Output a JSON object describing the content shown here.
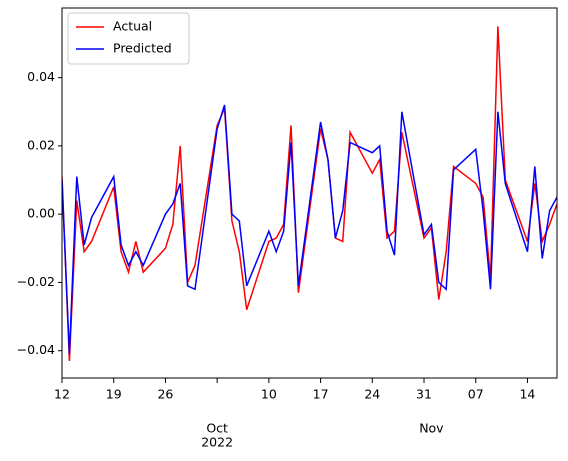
{
  "chart_data": {
    "type": "line",
    "x": [
      "2022-09-12",
      "2022-09-13",
      "2022-09-14",
      "2022-09-15",
      "2022-09-16",
      "2022-09-19",
      "2022-09-20",
      "2022-09-21",
      "2022-09-22",
      "2022-09-23",
      "2022-09-26",
      "2022-09-27",
      "2022-09-28",
      "2022-09-29",
      "2022-09-30",
      "2022-10-03",
      "2022-10-04",
      "2022-10-05",
      "2022-10-06",
      "2022-10-07",
      "2022-10-10",
      "2022-10-11",
      "2022-10-12",
      "2022-10-13",
      "2022-10-14",
      "2022-10-17",
      "2022-10-18",
      "2022-10-19",
      "2022-10-20",
      "2022-10-21",
      "2022-10-24",
      "2022-10-25",
      "2022-10-26",
      "2022-10-27",
      "2022-10-28",
      "2022-10-31",
      "2022-11-01",
      "2022-11-02",
      "2022-11-03",
      "2022-11-04",
      "2022-11-07",
      "2022-11-08",
      "2022-11-09",
      "2022-11-10",
      "2022-11-11",
      "2022-11-14",
      "2022-11-15",
      "2022-11-16",
      "2022-11-17",
      "2022-11-18"
    ],
    "series": [
      {
        "name": "Actual",
        "color": "#ff0000",
        "values": [
          0.011,
          -0.043,
          0.004,
          -0.011,
          -0.008,
          0.008,
          -0.011,
          -0.017,
          -0.008,
          -0.017,
          -0.01,
          -0.003,
          0.02,
          -0.02,
          -0.015,
          0.026,
          0.031,
          -0.002,
          -0.011,
          -0.028,
          -0.008,
          -0.007,
          -0.003,
          0.026,
          -0.023,
          0.025,
          0.016,
          -0.007,
          -0.008,
          0.024,
          0.012,
          0.016,
          -0.007,
          -0.005,
          0.024,
          -0.007,
          -0.004,
          -0.025,
          -0.011,
          0.014,
          0.009,
          0.005,
          -0.019,
          0.055,
          0.01,
          -0.008,
          0.009,
          -0.008,
          -0.003,
          0.003
        ]
      },
      {
        "name": "Predicted",
        "color": "#0000ff",
        "values": [
          0.01,
          -0.041,
          0.011,
          -0.009,
          -0.001,
          0.011,
          -0.009,
          -0.015,
          -0.011,
          -0.015,
          0.0,
          0.003,
          0.009,
          -0.021,
          -0.022,
          0.025,
          0.032,
          0.0,
          -0.002,
          -0.021,
          -0.005,
          -0.011,
          -0.005,
          0.021,
          -0.021,
          0.027,
          0.016,
          -0.007,
          0.001,
          0.021,
          0.018,
          0.02,
          -0.005,
          -0.012,
          0.03,
          -0.006,
          -0.003,
          -0.02,
          -0.022,
          0.013,
          0.019,
          0.001,
          -0.022,
          0.03,
          0.009,
          -0.011,
          0.014,
          -0.013,
          0.001,
          0.005
        ]
      }
    ],
    "xlim": [
      "2022-09-12",
      "2022-11-18"
    ],
    "xticks": [
      {
        "value": "2022-09-12",
        "label": "12"
      },
      {
        "value": "2022-09-19",
        "label": "19"
      },
      {
        "value": "2022-09-26",
        "label": "26"
      },
      {
        "value": "2022-10-03",
        "label": null
      },
      {
        "value": "2022-10-10",
        "label": "10"
      },
      {
        "value": "2022-10-17",
        "label": "17"
      },
      {
        "value": "2022-10-24",
        "label": "24"
      },
      {
        "value": "2022-10-31",
        "label": "31"
      },
      {
        "value": "2022-11-07",
        "label": "07"
      },
      {
        "value": "2022-11-14",
        "label": "14"
      }
    ],
    "month_labels": [
      {
        "value": "2022-10-03",
        "label": "Oct"
      },
      {
        "value": "2022-11-01",
        "label": "Nov"
      }
    ],
    "year_label": "2022",
    "ylim": [
      -0.048,
      0.0604
    ],
    "yticks": [
      {
        "value": -0.04,
        "label": "−0.04"
      },
      {
        "value": -0.02,
        "label": "−0.02"
      },
      {
        "value": 0,
        "label": "0.00"
      },
      {
        "value": 0.02,
        "label": "0.02"
      },
      {
        "value": 0.04,
        "label": "0.04"
      }
    ],
    "legend": "upper left"
  }
}
